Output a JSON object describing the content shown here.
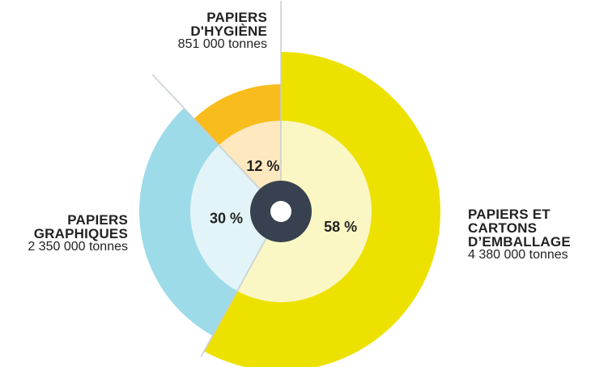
{
  "chart_data": {
    "type": "pie",
    "series": [
      {
        "name": "",
        "categories": [
          "PAPIERS ET CARTONS D’EMBALLAGE",
          "PAPIERS GRAPHIQUES",
          "PAPIERS D'HYGIÈNE"
        ],
        "values": [
          58,
          30,
          12
        ],
        "tonnages": [
          "4 380 000 tonnes",
          "2 350 000 tonnes",
          "851 000 tonnes"
        ]
      }
    ],
    "slices": [
      {
        "id": "emballage",
        "title_1": "PAPIERS ET CARTONS",
        "title_2": "D’EMBALLAGE",
        "tonnage": "4 380 000 tonnes",
        "percent": 58,
        "percent_label": "58 %",
        "color": "#ede100",
        "inner_color": "#fbf7c4"
      },
      {
        "id": "graphiques",
        "title_1": "PAPIERS",
        "title_2": "GRAPHIQUES",
        "tonnage": "2 350 000 tonnes",
        "percent": 30,
        "percent_label": "30 %",
        "color": "#9ddbe9",
        "inner_color": "#e3f4f8"
      },
      {
        "id": "hygiene",
        "title_1": "PAPIERS",
        "title_2": "D'HYGIÈNE",
        "tonnage": "851 000 tonnes",
        "percent": 12,
        "percent_label": "12 %",
        "color": "#f8bd1c",
        "inner_color": "#fde8bf"
      }
    ],
    "center_color": "#38414f"
  }
}
